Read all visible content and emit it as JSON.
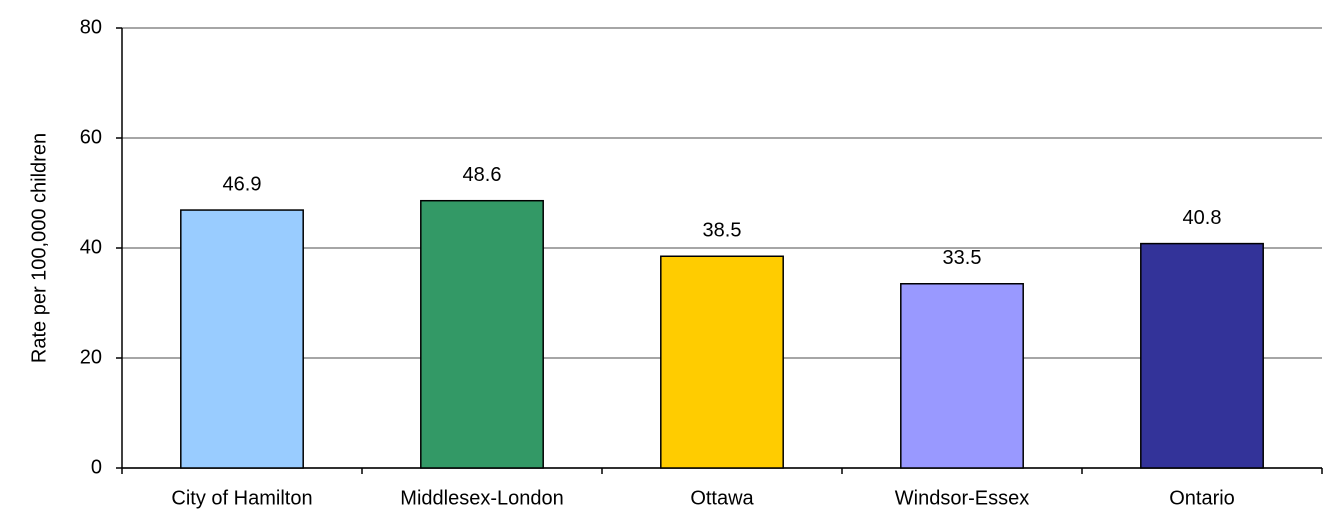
{
  "chart_data": {
    "type": "bar",
    "y_label": "Rate per 100,000 children",
    "categories": [
      "City of Hamilton",
      "Middlesex-London",
      "Ottawa",
      "Windsor-Essex",
      "Ontario"
    ],
    "values": [
      46.9,
      48.6,
      38.5,
      33.5,
      40.8
    ],
    "colors": [
      "#99ccff",
      "#339966",
      "#ffcc00",
      "#9999ff",
      "#333399"
    ],
    "ylim": [
      0,
      80
    ],
    "yticks": [
      0,
      20,
      40,
      60,
      80
    ],
    "grid": true
  }
}
